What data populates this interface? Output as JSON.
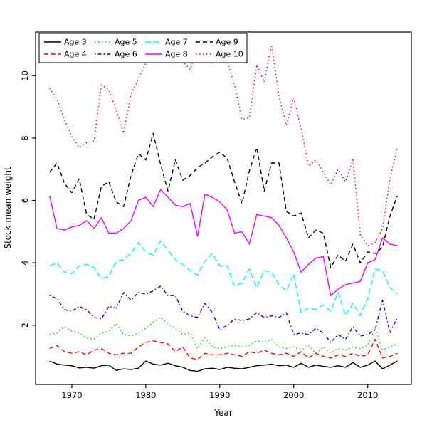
{
  "figure": {
    "xlabel": "Year",
    "ylabel": "Stock mean weight"
  },
  "chart_data": {
    "type": "line",
    "title": "",
    "xlabel": "Year",
    "ylabel": "Stock mean weight",
    "grid": false,
    "legend_position": "top-left",
    "legend_columns": 4,
    "xlim": [
      1965.1,
      2015.9
    ],
    "ylim": [
      0.1,
      11.4
    ],
    "xticks": [
      1970,
      1980,
      1990,
      2000,
      2010
    ],
    "yticks": [
      2,
      4,
      6,
      8,
      10
    ],
    "x": [
      1967,
      1968,
      1969,
      1970,
      1971,
      1972,
      1973,
      1974,
      1975,
      1976,
      1977,
      1978,
      1979,
      1980,
      1981,
      1982,
      1983,
      1984,
      1985,
      1986,
      1987,
      1988,
      1989,
      1990,
      1991,
      1992,
      1993,
      1994,
      1995,
      1996,
      1997,
      1998,
      1999,
      2000,
      2001,
      2002,
      2003,
      2004,
      2005,
      2006,
      2007,
      2008,
      2009,
      2010,
      2011,
      2012,
      2013,
      2014
    ],
    "series": [
      {
        "name": "Age 3",
        "color": "#000000",
        "linestyle": "solid",
        "values": [
          0.85,
          0.75,
          0.72,
          0.7,
          0.63,
          0.65,
          0.62,
          0.7,
          0.72,
          0.55,
          0.6,
          0.58,
          0.62,
          0.85,
          0.75,
          0.72,
          0.78,
          0.7,
          0.65,
          0.55,
          0.52,
          0.6,
          0.62,
          0.58,
          0.65,
          0.62,
          0.6,
          0.65,
          0.7,
          0.72,
          0.75,
          0.7,
          0.72,
          0.65,
          0.78,
          0.65,
          0.72,
          0.68,
          0.65,
          0.7,
          0.65,
          0.8,
          0.65,
          0.72,
          0.85,
          0.6,
          0.72,
          0.85
        ]
      },
      {
        "name": "Age 4",
        "color": "#FF0000",
        "linestyle": "dashed",
        "values": [
          1.25,
          1.35,
          1.15,
          1.1,
          1.15,
          1.05,
          1.2,
          1.25,
          1.1,
          1.05,
          1.1,
          1.1,
          1.3,
          1.45,
          1.5,
          1.45,
          1.4,
          1.15,
          1.3,
          0.95,
          0.9,
          1.1,
          1.05,
          1.05,
          1.1,
          1.05,
          1.0,
          1.15,
          1.1,
          1.2,
          1.1,
          1.05,
          1.1,
          1.0,
          1.15,
          0.95,
          1.1,
          1.0,
          0.95,
          1.05,
          1.0,
          1.1,
          1.0,
          1.05,
          1.55,
          0.95,
          1.0,
          1.1
        ]
      },
      {
        "name": "Age 5",
        "color": "#00CC00",
        "linestyle": "dotted",
        "values": [
          1.7,
          1.75,
          1.95,
          1.8,
          1.75,
          1.6,
          1.55,
          1.75,
          1.8,
          2.05,
          1.7,
          1.65,
          1.75,
          1.9,
          2.1,
          2.25,
          2.05,
          1.9,
          1.7,
          1.75,
          1.25,
          1.6,
          1.3,
          1.25,
          1.3,
          1.35,
          1.3,
          1.35,
          1.5,
          1.45,
          1.55,
          1.3,
          1.25,
          1.3,
          1.2,
          1.35,
          1.1,
          1.3,
          1.1,
          1.25,
          1.2,
          1.3,
          1.25,
          1.35,
          1.9,
          1.2,
          1.3,
          1.4
        ]
      },
      {
        "name": "Age 6",
        "color": "#0000FF",
        "linestyle": "dotdash",
        "values": [
          2.95,
          2.85,
          2.5,
          2.45,
          2.6,
          2.5,
          2.25,
          2.2,
          2.6,
          2.55,
          3.05,
          2.8,
          3.05,
          3.0,
          3.1,
          3.25,
          2.95,
          2.95,
          2.45,
          2.3,
          2.25,
          2.7,
          2.4,
          1.85,
          2.0,
          2.2,
          2.15,
          2.2,
          2.4,
          2.25,
          2.3,
          2.25,
          2.4,
          1.7,
          1.75,
          1.7,
          1.9,
          1.75,
          1.45,
          1.7,
          1.55,
          1.95,
          1.65,
          1.7,
          1.85,
          2.8,
          1.75,
          2.25
        ]
      },
      {
        "name": "Age 7",
        "color": "#00FFFF",
        "linestyle": "longdash",
        "values": [
          3.9,
          4.0,
          3.7,
          3.65,
          3.9,
          3.95,
          3.85,
          3.5,
          3.55,
          4.05,
          4.1,
          4.3,
          4.65,
          4.35,
          4.25,
          4.7,
          4.4,
          4.1,
          3.95,
          3.75,
          3.6,
          4.05,
          4.3,
          3.9,
          3.9,
          3.25,
          3.35,
          3.8,
          3.2,
          3.75,
          3.7,
          3.3,
          3.1,
          3.65,
          2.4,
          2.55,
          2.5,
          2.65,
          2.45,
          3.05,
          2.3,
          2.7,
          2.3,
          2.85,
          3.8,
          3.75,
          3.2,
          3.0
        ]
      },
      {
        "name": "Age 8",
        "color": "#FF00FF",
        "linestyle": "solid",
        "values": [
          6.15,
          5.1,
          5.05,
          5.15,
          5.2,
          5.35,
          5.1,
          5.45,
          4.95,
          4.95,
          5.1,
          5.35,
          6.0,
          6.1,
          5.8,
          6.35,
          6.1,
          5.85,
          5.8,
          5.9,
          4.85,
          6.2,
          6.1,
          5.95,
          5.7,
          4.95,
          5.0,
          4.6,
          5.55,
          5.5,
          5.45,
          5.2,
          4.8,
          4.35,
          3.7,
          3.95,
          4.15,
          4.2,
          2.95,
          3.15,
          3.3,
          3.35,
          3.4,
          4.0,
          4.1,
          4.8,
          4.6,
          4.55
        ]
      },
      {
        "name": "Age 9",
        "color": "#000000",
        "linestyle": "dashed",
        "values": [
          6.9,
          7.2,
          6.55,
          6.25,
          6.7,
          5.55,
          5.4,
          6.45,
          6.6,
          5.95,
          5.8,
          6.8,
          7.5,
          7.3,
          8.15,
          7.15,
          6.3,
          7.3,
          6.65,
          6.8,
          7.05,
          7.2,
          7.4,
          7.55,
          7.35,
          6.6,
          5.9,
          6.95,
          7.7,
          6.3,
          7.2,
          7.2,
          5.65,
          5.5,
          5.6,
          4.8,
          5.05,
          4.95,
          3.85,
          4.25,
          4.05,
          4.6,
          4.0,
          4.35,
          4.3,
          4.5,
          5.5,
          6.15
        ]
      },
      {
        "name": "Age 10",
        "color": "#FF0000",
        "linestyle": "dotted",
        "values": [
          9.6,
          9.25,
          8.6,
          8.05,
          7.7,
          7.85,
          7.9,
          9.7,
          9.55,
          8.9,
          8.15,
          9.4,
          9.9,
          10.4,
          10.95,
          10.9,
          10.6,
          10.85,
          10.45,
          10.2,
          10.9,
          10.45,
          10.4,
          10.5,
          10.45,
          9.7,
          8.6,
          8.65,
          10.35,
          9.8,
          11.0,
          9.35,
          8.4,
          9.3,
          8.3,
          7.1,
          7.3,
          6.9,
          6.5,
          7.0,
          6.6,
          7.3,
          4.9,
          4.55,
          4.65,
          5.1,
          6.7,
          7.7
        ]
      }
    ]
  }
}
